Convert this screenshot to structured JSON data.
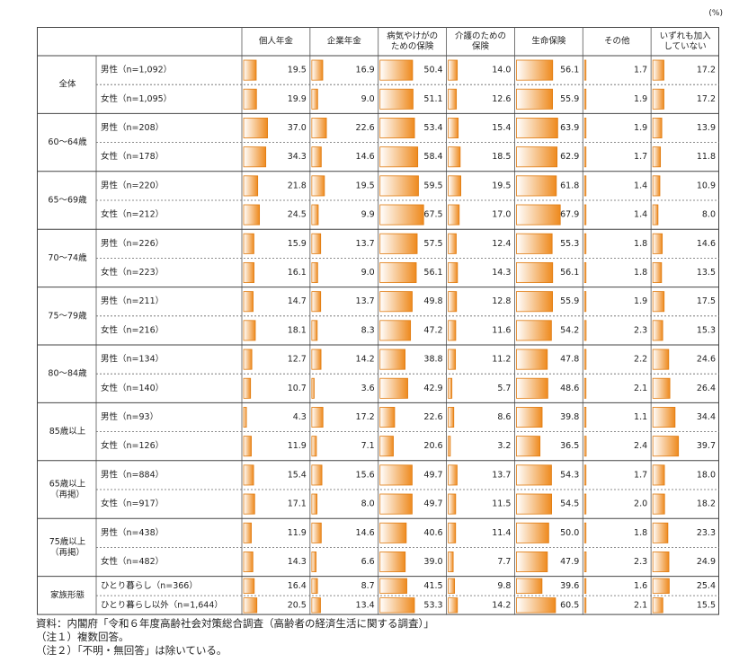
{
  "unit_label": "(%)",
  "notes": [
    "資料：内閣府「令和６年度高齢社会対策総合調査（高齢者の経済生活に関する調査）」",
    "（注１）複数回答。",
    "（注２）「不明・無回答」は除いている。"
  ],
  "colors": {
    "bar_light": "#ffffff",
    "bar_dark": "#ee8a1e",
    "bar_border": "#e07b10"
  },
  "chart_data": {
    "type": "table",
    "columns": [
      "個人年金",
      "企業年金",
      "病気やけがのための保険",
      "介護のための保険",
      "生命保険",
      "その他",
      "いずれも加入していない"
    ],
    "column_lines": [
      [
        "個人年金"
      ],
      [
        "企業年金"
      ],
      [
        "病気やけがの",
        "ための保険"
      ],
      [
        "介護のための",
        "保険"
      ],
      [
        "生命保険"
      ],
      [
        "その他"
      ],
      [
        "いずれも加入",
        "していない"
      ]
    ],
    "groups": [
      {
        "label": [
          "全体"
        ],
        "rows": [
          {
            "label": "男性（n=1,092）",
            "values": [
              19.5,
              16.9,
              50.4,
              14.0,
              56.1,
              1.7,
              17.2
            ]
          },
          {
            "label": "女性（n=1,095）",
            "values": [
              19.9,
              9.0,
              51.1,
              12.6,
              55.9,
              1.9,
              17.2
            ]
          }
        ]
      },
      {
        "label": [
          "60～64歳"
        ],
        "rows": [
          {
            "label": "男性（n=208）",
            "values": [
              37.0,
              22.6,
              53.4,
              15.4,
              63.9,
              1.9,
              13.9
            ]
          },
          {
            "label": "女性（n=178）",
            "values": [
              34.3,
              14.6,
              58.4,
              18.5,
              62.9,
              1.7,
              11.8
            ]
          }
        ]
      },
      {
        "label": [
          "65～69歳"
        ],
        "rows": [
          {
            "label": "男性（n=220）",
            "values": [
              21.8,
              19.5,
              59.5,
              19.5,
              61.8,
              1.4,
              10.9
            ]
          },
          {
            "label": "女性（n=212）",
            "values": [
              24.5,
              9.9,
              67.5,
              17.0,
              67.9,
              1.4,
              8.0
            ]
          }
        ]
      },
      {
        "label": [
          "70～74歳"
        ],
        "rows": [
          {
            "label": "男性（n=226）",
            "values": [
              15.9,
              13.7,
              57.5,
              12.4,
              55.3,
              1.8,
              14.6
            ]
          },
          {
            "label": "女性（n=223）",
            "values": [
              16.1,
              9.0,
              56.1,
              14.3,
              56.1,
              1.8,
              13.5
            ]
          }
        ]
      },
      {
        "label": [
          "75～79歳"
        ],
        "rows": [
          {
            "label": "男性（n=211）",
            "values": [
              14.7,
              13.7,
              49.8,
              12.8,
              55.9,
              1.9,
              17.5
            ]
          },
          {
            "label": "女性（n=216）",
            "values": [
              18.1,
              8.3,
              47.2,
              11.6,
              54.2,
              2.3,
              15.3
            ]
          }
        ]
      },
      {
        "label": [
          "80～84歳"
        ],
        "rows": [
          {
            "label": "男性（n=134）",
            "values": [
              12.7,
              14.2,
              38.8,
              11.2,
              47.8,
              2.2,
              24.6
            ]
          },
          {
            "label": "女性（n=140）",
            "values": [
              10.7,
              3.6,
              42.9,
              5.7,
              48.6,
              2.1,
              26.4
            ]
          }
        ]
      },
      {
        "label": [
          "85歳以上"
        ],
        "rows": [
          {
            "label": "男性（n=93）",
            "values": [
              4.3,
              17.2,
              22.6,
              8.6,
              39.8,
              1.1,
              34.4
            ]
          },
          {
            "label": "女性（n=126）",
            "values": [
              11.9,
              7.1,
              20.6,
              3.2,
              36.5,
              2.4,
              39.7
            ]
          }
        ]
      },
      {
        "label": [
          "65歳以上",
          "（再掲）"
        ],
        "rows": [
          {
            "label": "男性（n=884）",
            "values": [
              15.4,
              15.6,
              49.7,
              13.7,
              54.3,
              1.7,
              18.0
            ]
          },
          {
            "label": "女性（n=917）",
            "values": [
              17.1,
              8.0,
              49.7,
              11.5,
              54.5,
              2.0,
              18.2
            ]
          }
        ]
      },
      {
        "label": [
          "75歳以上",
          "（再掲）"
        ],
        "rows": [
          {
            "label": "男性（n=438）",
            "values": [
              11.9,
              14.6,
              40.6,
              11.4,
              50.0,
              1.8,
              23.3
            ]
          },
          {
            "label": "女性（n=482）",
            "values": [
              14.3,
              6.6,
              39.0,
              7.7,
              47.9,
              2.3,
              24.9
            ]
          }
        ]
      },
      {
        "label": [
          "家族形態"
        ],
        "rows": [
          {
            "label": "ひとり暮らし（n=366）",
            "values": [
              16.4,
              8.7,
              41.5,
              9.8,
              39.6,
              1.6,
              25.4
            ]
          },
          {
            "label": "ひとり暮らし以外（n=1,644）",
            "values": [
              20.5,
              13.4,
              53.3,
              14.2,
              60.5,
              2.1,
              15.5
            ]
          }
        ]
      }
    ]
  }
}
